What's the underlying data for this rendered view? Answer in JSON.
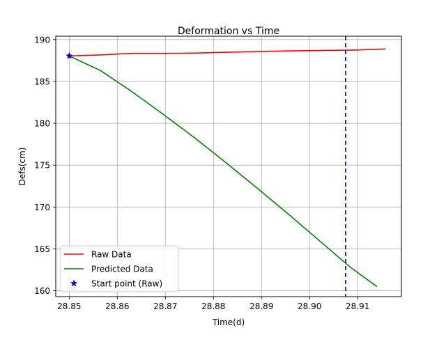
{
  "chart_data": {
    "type": "line",
    "title": "Deformation vs Time",
    "xlabel": "Time(d)",
    "ylabel": "Defs(cm)",
    "xlim": [
      28.8472,
      28.9191
    ],
    "ylim": [
      159.3,
      190.4
    ],
    "xticks": [
      28.85,
      28.86,
      28.87,
      28.88,
      28.89,
      28.9,
      28.91
    ],
    "xtick_labels": [
      "28.85",
      "28.86",
      "28.87",
      "28.88",
      "28.89",
      "28.90",
      "28.91"
    ],
    "yticks": [
      160,
      165,
      170,
      175,
      180,
      185,
      190
    ],
    "ytick_labels": [
      "160",
      "165",
      "170",
      "175",
      "180",
      "185",
      "190"
    ],
    "grid": true,
    "legend_position": "lower-left",
    "series": [
      {
        "name": "Raw Data",
        "color": "#ff0000",
        "style": "solid",
        "x": [
          28.85,
          28.856,
          28.863,
          28.87,
          28.876,
          28.883,
          28.89,
          28.896,
          28.903,
          28.91,
          28.9158
        ],
        "y": [
          188.05,
          188.15,
          188.35,
          188.35,
          188.38,
          188.48,
          188.58,
          188.65,
          188.7,
          188.75,
          188.88
        ]
      },
      {
        "name": "Predicted Data",
        "color": "#008000",
        "style": "solid",
        "x": [
          28.85,
          28.8565,
          28.863,
          28.8695,
          28.876,
          28.8825,
          28.889,
          28.8955,
          28.902,
          28.9085,
          28.914
        ],
        "y": [
          188.05,
          186.3,
          183.8,
          181.1,
          178.3,
          175.35,
          172.3,
          169.2,
          166.0,
          162.8,
          160.5
        ]
      },
      {
        "name": "Start point (Raw)",
        "color": "#0000cc",
        "marker": "star",
        "x": [
          28.85
        ],
        "y": [
          188.05
        ]
      }
    ],
    "vlines": [
      {
        "x": 28.9075,
        "color": "#00008b",
        "style": "dashed"
      }
    ]
  }
}
